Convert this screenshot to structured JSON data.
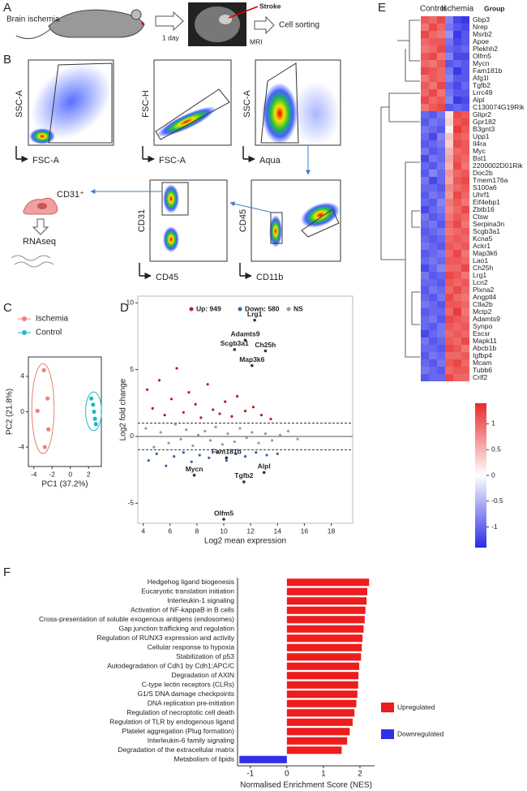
{
  "panel_labels": [
    "A",
    "B",
    "C",
    "D",
    "E",
    "F"
  ],
  "panel_a": {
    "model": "Brain ischemia",
    "time": "1 day",
    "stroke": "Stroke",
    "mri": "MRI",
    "sorting": "Cell sorting"
  },
  "panel_b": {
    "plots": [
      {
        "x_label": "FSC-A",
        "y_label": "SSC-A"
      },
      {
        "x_label": "FSC-A",
        "y_label": "FSC-H"
      },
      {
        "x_label": "Aqua",
        "y_label": "SSC-A"
      },
      {
        "x_label": "CD11b",
        "y_label": "CD45"
      },
      {
        "x_label": "CD45",
        "y_label": "CD31"
      }
    ],
    "cell": "CD31⁺",
    "assay": "RNAseq"
  },
  "chart_data": [
    {
      "type": "scatter",
      "x_label": "PC1 (37.2%)",
      "y_label": "PC2 (21.8%)",
      "xlim": [
        -4.6,
        3.4
      ],
      "ylim": [
        -6.2,
        6.2
      ],
      "xticks": [
        -4,
        -2,
        0,
        2
      ],
      "yticks": [
        -4,
        0,
        4
      ],
      "series": [
        {
          "name": "Ischemia",
          "color": "#e8827a",
          "x": [
            -2.9,
            -3.6,
            -2.5,
            -2.4,
            -2.8
          ],
          "y": [
            4.7,
            0.1,
            1.5,
            -2.0,
            -4.0
          ]
        },
        {
          "name": "Control",
          "color": "#22b8c8",
          "x": [
            2.3,
            2.5,
            2.6,
            2.7,
            2.8
          ],
          "y": [
            1.5,
            0.8,
            0.0,
            -0.8,
            -1.4
          ]
        }
      ]
    },
    {
      "type": "ma",
      "x_label": "Log2 mean expression",
      "y_label": "Log2 fold change",
      "xlim": [
        3.6,
        19.6
      ],
      "ylim": [
        -6.5,
        10.5
      ],
      "xticks": [
        4,
        6,
        8,
        10,
        12,
        14,
        16,
        18
      ],
      "yticks": [
        -5,
        0,
        5,
        10
      ],
      "thresholds": [
        -1,
        1
      ],
      "series": [
        {
          "name": "Up: 949",
          "color": "#b22222",
          "x": [
            4.3,
            4.7,
            5.2,
            5.6,
            6.1,
            6.5,
            7.0,
            7.4,
            7.9,
            8.3,
            8.8,
            9.2,
            9.7,
            10.1,
            10.6,
            11.0,
            11.6,
            12.2,
            12.8,
            13.5
          ],
          "y": [
            3.5,
            2.1,
            4.2,
            1.6,
            2.8,
            5.1,
            1.8,
            3.3,
            2.4,
            1.4,
            3.9,
            2.0,
            1.7,
            2.6,
            1.5,
            3.0,
            1.9,
            2.2,
            1.6,
            1.3
          ]
        },
        {
          "name": "Down: 580",
          "color": "#2b6cb0",
          "x": [
            4.4,
            5.0,
            5.7,
            6.3,
            7.0,
            7.6,
            8.2,
            8.9,
            9.5,
            10.2,
            10.9,
            11.6,
            12.4,
            13.2,
            14.0
          ],
          "y": [
            -1.8,
            -1.3,
            -2.2,
            -1.5,
            -1.2,
            -1.9,
            -1.4,
            -1.6,
            -1.2,
            -1.8,
            -1.3,
            -1.5,
            -1.2,
            -1.4,
            -1.3
          ]
        },
        {
          "name": "NS",
          "color": "#9a9a9a",
          "x": [
            4.2,
            4.8,
            5.3,
            5.9,
            6.4,
            6.8,
            7.2,
            7.7,
            8.1,
            8.6,
            9.0,
            9.4,
            9.9,
            10.3,
            10.8,
            11.2,
            11.7,
            12.1,
            12.6,
            13.1,
            13.6,
            14.2,
            14.8,
            15.5
          ],
          "y": [
            0.6,
            -0.8,
            0.3,
            -0.5,
            0.9,
            -0.2,
            0.5,
            -0.7,
            0.1,
            0.4,
            -0.3,
            0.7,
            -0.6,
            0.2,
            -0.4,
            0.6,
            -0.1,
            0.3,
            -0.5,
            0.2,
            -0.3,
            0.1,
            0.4,
            -0.2
          ]
        }
      ],
      "annotations": [
        {
          "label": "Lrg1",
          "x": 12.3,
          "y": 8.7
        },
        {
          "label": "Adamts9",
          "x": 11.6,
          "y": 7.2
        },
        {
          "label": "Scgb3a1",
          "x": 10.8,
          "y": 6.5
        },
        {
          "label": "Ch25h",
          "x": 13.1,
          "y": 6.4
        },
        {
          "label": "Map3k6",
          "x": 12.1,
          "y": 5.3
        },
        {
          "label": "Fam181b",
          "x": 10.2,
          "y": -1.6
        },
        {
          "label": "Mycn",
          "x": 7.8,
          "y": -2.9
        },
        {
          "label": "Alpl",
          "x": 13.0,
          "y": -2.7
        },
        {
          "label": "Tgfb2",
          "x": 11.5,
          "y": -3.4
        },
        {
          "label": "Olfm5",
          "x": 10.0,
          "y": -6.2
        }
      ]
    },
    {
      "type": "heatmap",
      "column_groups": [
        "Control",
        "Ischemia"
      ],
      "group_label": "Group",
      "colors": [
        "#2a2ae8",
        "#ffffff",
        "#e82a2a"
      ],
      "clim": [
        -1.4,
        1.4
      ],
      "cticks": [
        1,
        0.5,
        0,
        -0.5,
        -1
      ],
      "genes": [
        "Gbp3",
        "Nrep",
        "Msrb2",
        "Apoe",
        "Plekhh2",
        "Olfm5",
        "Mycn",
        "Fam181b",
        "Afg1l",
        "Tgfb2",
        "Lrrc49",
        "Alpl",
        "C130074G19Rik",
        "Glipr2",
        "Gpr182",
        "B3gnt3",
        "Upp1",
        "Il4ra",
        "Myc",
        "Bst1",
        "2200002D01Rik",
        "Doc2b",
        "Tmem176a",
        "S100a6",
        "Uhrf1",
        "Eif4ebp1",
        "Zbtb16",
        "Ctsw",
        "Serpina3n",
        "Scgb3a1",
        "Kcna5",
        "Ackr1",
        "Map3k6",
        "Lao1",
        "Ch25h",
        "Lrg1",
        "Lcn2",
        "Plxna2",
        "Angptl4",
        "Ctla2b",
        "Mctp2",
        "Adamts9",
        "Synpo",
        "Escsr",
        "Mapk11",
        "Abcb1b",
        "Igfbp4",
        "Mcam",
        "Tubb6",
        "Crlf2"
      ],
      "values": [
        [
          1.1,
          1.0,
          1.2,
          -0.8,
          -1.2,
          -1.3
        ],
        [
          0.9,
          1.2,
          1.0,
          -0.9,
          -1.1,
          -1.2
        ],
        [
          1.2,
          1.0,
          0.9,
          -0.7,
          -1.3,
          -1.1
        ],
        [
          1.0,
          1.1,
          1.1,
          -0.9,
          -1.2,
          -1.1
        ],
        [
          0.9,
          1.0,
          1.2,
          -1.0,
          -1.1,
          -1.0
        ],
        [
          1.1,
          1.2,
          0.9,
          -0.8,
          -1.2,
          -1.2
        ],
        [
          1.0,
          0.9,
          1.1,
          -1.1,
          -1.0,
          -1.1
        ],
        [
          1.2,
          1.1,
          1.0,
          -0.9,
          -1.3,
          -1.1
        ],
        [
          0.9,
          1.1,
          1.0,
          -0.8,
          -1.1,
          -1.1
        ],
        [
          1.1,
          0.9,
          1.2,
          -1.0,
          -1.2,
          -1.0
        ],
        [
          1.0,
          1.2,
          0.9,
          -0.9,
          -1.1,
          -1.1
        ],
        [
          1.2,
          1.0,
          1.1,
          -0.8,
          -1.3,
          -1.2
        ],
        [
          0.9,
          1.1,
          1.2,
          -1.1,
          -1.0,
          -1.1
        ],
        [
          -1.0,
          -1.1,
          -0.9,
          0.2,
          1.2,
          1.1
        ],
        [
          -1.1,
          -0.9,
          -1.0,
          0.3,
          1.1,
          1.2
        ],
        [
          -0.9,
          -1.0,
          -1.1,
          0.1,
          1.3,
          1.1
        ],
        [
          -1.0,
          -1.2,
          -0.8,
          0.4,
          1.1,
          1.0
        ],
        [
          -1.1,
          -1.0,
          -0.9,
          0.3,
          1.2,
          1.1
        ],
        [
          -0.9,
          -1.1,
          -1.0,
          0.5,
          1.0,
          1.1
        ],
        [
          -1.2,
          -0.9,
          -1.0,
          0.6,
          1.1,
          1.0
        ],
        [
          -1.0,
          -1.1,
          -0.9,
          0.5,
          1.2,
          0.9
        ],
        [
          -1.1,
          -0.8,
          -1.0,
          0.7,
          1.0,
          1.1
        ],
        [
          -0.9,
          -1.2,
          -1.0,
          0.6,
          1.1,
          1.2
        ],
        [
          -1.0,
          -1.0,
          -1.1,
          0.8,
          1.0,
          1.1
        ],
        [
          -1.1,
          -0.9,
          -1.0,
          0.7,
          1.2,
          1.0
        ],
        [
          -1.0,
          -1.1,
          -0.8,
          0.9,
          1.1,
          0.9
        ],
        [
          -1.2,
          -1.0,
          -0.9,
          0.8,
          1.0,
          1.2
        ],
        [
          -0.9,
          -1.1,
          -1.0,
          0.9,
          1.1,
          1.0
        ],
        [
          -1.0,
          -0.9,
          -1.1,
          1.0,
          1.2,
          0.9
        ],
        [
          -1.1,
          -1.0,
          -0.9,
          0.9,
          1.0,
          1.1
        ],
        [
          -1.0,
          -1.1,
          -1.0,
          1.0,
          1.1,
          1.0
        ],
        [
          -0.9,
          -1.0,
          -1.1,
          1.1,
          1.0,
          1.1
        ],
        [
          -1.1,
          -1.0,
          -0.9,
          1.0,
          1.2,
          0.9
        ],
        [
          -1.0,
          -0.9,
          -1.0,
          1.1,
          1.1,
          1.0
        ],
        [
          -1.2,
          -1.0,
          -0.8,
          1.0,
          1.0,
          1.2
        ],
        [
          -0.9,
          -1.1,
          -1.0,
          1.2,
          1.1,
          0.9
        ],
        [
          -1.0,
          -1.0,
          -1.1,
          1.1,
          1.0,
          1.1
        ],
        [
          -1.1,
          -0.9,
          -1.0,
          1.0,
          1.2,
          1.0
        ],
        [
          -1.0,
          -1.1,
          -0.9,
          1.2,
          1.0,
          0.9
        ],
        [
          -0.9,
          -1.0,
          -1.1,
          1.1,
          1.1,
          1.0
        ],
        [
          -1.1,
          -1.0,
          -1.0,
          1.0,
          1.3,
          0.9
        ],
        [
          -1.0,
          -0.9,
          -1.1,
          1.2,
          1.1,
          1.0
        ],
        [
          -1.0,
          -1.1,
          -0.9,
          1.1,
          1.0,
          1.1
        ],
        [
          -1.2,
          -1.0,
          -0.9,
          1.0,
          1.1,
          1.0
        ],
        [
          -0.9,
          -1.1,
          -1.0,
          1.1,
          1.0,
          1.2
        ],
        [
          -1.0,
          -1.0,
          -1.1,
          1.2,
          1.1,
          0.9
        ],
        [
          -1.1,
          -0.9,
          -1.0,
          1.0,
          1.0,
          1.1
        ],
        [
          -1.0,
          -1.1,
          -0.9,
          1.1,
          1.2,
          1.0
        ],
        [
          -0.9,
          -1.0,
          -1.1,
          1.0,
          1.1,
          1.1
        ],
        [
          -1.1,
          -1.0,
          -1.0,
          1.2,
          1.0,
          1.0
        ]
      ]
    },
    {
      "type": "hbar",
      "x_label": "Normalised Enrichment Score (NES)",
      "xlim": [
        -1.35,
        2.4
      ],
      "xticks": [
        -1,
        0,
        1,
        2
      ],
      "categories": [
        "Hedgehog ligand biogenesis",
        "Eucaryotic translation initiation",
        "Interleukin-1 signaling",
        "Activation of NF-kappaB in B cells",
        "Cross-presentation of soluble exogenous antigens (endosomes)",
        "Gap junction trafficking and regulation",
        "Regulation of RUNX3 expression and activity",
        "Cellular response to hypoxia",
        "Stabilization of p53",
        "Autodegradation of Cdh1 by Cdh1:APC/C",
        "Degradation of AXIN",
        "C-type lectin receptors (CLRs)",
        "G1/S DNA damage checkpoints",
        "DNA replication pre-initiation",
        "Regulation of necroptotic cell death",
        "Regulation of TLR by endogenous ligand",
        "Platelet aggregation (Plug formation)",
        "Interleukin-6 family signaling",
        "Degradation of the extracellular matrix",
        "Metabolism of lipids"
      ],
      "series": [
        {
          "name": "Upregulated",
          "color": "#ee1c1c",
          "values": [
            2.25,
            2.2,
            2.18,
            2.15,
            2.13,
            2.1,
            2.07,
            2.05,
            2.03,
            1.98,
            1.96,
            1.95,
            1.93,
            1.9,
            1.85,
            1.8,
            1.72,
            1.65,
            1.5,
            null
          ]
        },
        {
          "name": "Downregulated",
          "color": "#3030e8",
          "values": [
            null,
            null,
            null,
            null,
            null,
            null,
            null,
            null,
            null,
            null,
            null,
            null,
            null,
            null,
            null,
            null,
            null,
            null,
            null,
            -1.3
          ]
        }
      ]
    }
  ]
}
